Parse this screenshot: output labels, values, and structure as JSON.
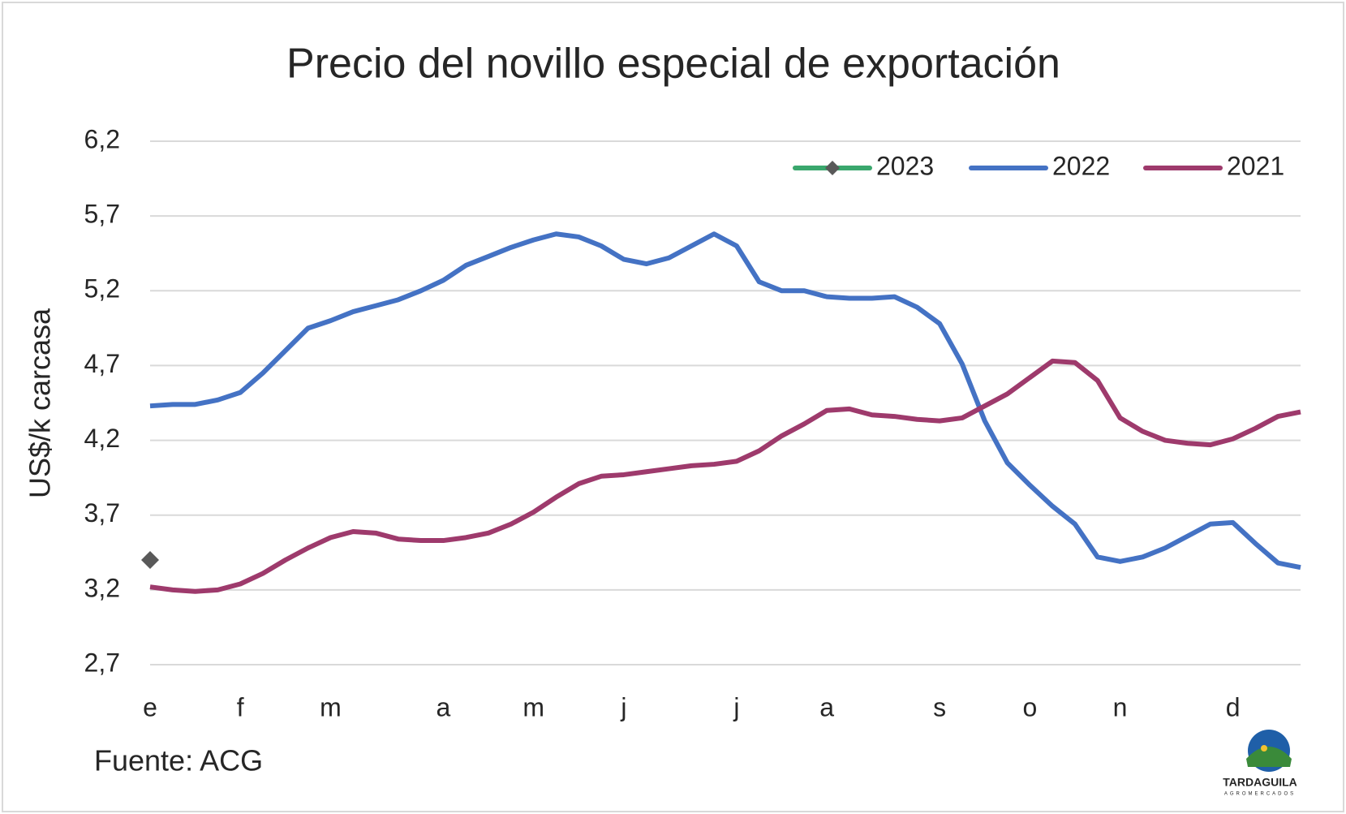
{
  "chart_data": {
    "type": "line",
    "title": "Precio del novillo especial de exportación",
    "y_label": "US$/k carcasa",
    "source": "Fuente: ACG",
    "logo": {
      "name": "TARDAGUILA",
      "tagline": "AGROMERCADOS"
    },
    "categories": [
      "e",
      null,
      null,
      null,
      "f",
      null,
      null,
      null,
      "m",
      null,
      null,
      null,
      null,
      "a",
      null,
      null,
      null,
      "m",
      null,
      null,
      null,
      "j",
      null,
      null,
      null,
      null,
      "j",
      null,
      null,
      null,
      "a",
      null,
      null,
      null,
      null,
      "s",
      null,
      null,
      null,
      "o",
      null,
      null,
      null,
      "n",
      null,
      null,
      null,
      null,
      "d",
      null,
      null,
      null
    ],
    "series": [
      {
        "name": "2023",
        "color": "#3aa76d",
        "marker": "diamond",
        "marker_color": "#595959",
        "values": [
          3.4,
          null,
          null,
          null,
          null,
          null,
          null,
          null,
          null,
          null,
          null,
          null,
          null,
          null,
          null,
          null,
          null,
          null,
          null,
          null,
          null,
          null,
          null,
          null,
          null,
          null,
          null,
          null,
          null,
          null,
          null,
          null,
          null,
          null,
          null,
          null,
          null,
          null,
          null,
          null,
          null,
          null,
          null,
          null,
          null,
          null,
          null,
          null,
          null,
          null,
          null,
          null
        ]
      },
      {
        "name": "2022",
        "color": "#4472c4",
        "values": [
          4.43,
          4.44,
          4.44,
          4.47,
          4.52,
          4.65,
          4.8,
          4.95,
          5.0,
          5.06,
          5.1,
          5.14,
          5.2,
          5.27,
          5.37,
          5.43,
          5.49,
          5.54,
          5.58,
          5.56,
          5.5,
          5.41,
          5.38,
          5.42,
          5.5,
          5.58,
          5.5,
          5.26,
          5.2,
          5.2,
          5.16,
          5.15,
          5.15,
          5.16,
          5.09,
          4.98,
          4.71,
          4.33,
          4.05,
          3.9,
          3.76,
          3.64,
          3.42,
          3.39,
          3.42,
          3.48,
          3.56,
          3.64,
          3.65,
          3.51,
          3.38,
          3.35
        ]
      },
      {
        "name": "2021",
        "color": "#9e3a6c",
        "values": [
          3.22,
          3.2,
          3.19,
          3.2,
          3.24,
          3.31,
          3.4,
          3.48,
          3.55,
          3.59,
          3.58,
          3.54,
          3.53,
          3.53,
          3.55,
          3.58,
          3.64,
          3.72,
          3.82,
          3.91,
          3.96,
          3.97,
          3.99,
          4.01,
          4.03,
          4.04,
          4.06,
          4.13,
          4.23,
          4.31,
          4.4,
          4.41,
          4.37,
          4.36,
          4.34,
          4.33,
          4.35,
          4.43,
          4.51,
          4.62,
          4.73,
          4.72,
          4.6,
          4.35,
          4.26,
          4.2,
          4.18,
          4.17,
          4.21,
          4.28,
          4.36,
          4.39
        ]
      }
    ],
    "ylim": [
      2.7,
      6.2
    ],
    "yticks": [
      {
        "value": 2.7,
        "label": "2,7"
      },
      {
        "value": 3.2,
        "label": "3,2"
      },
      {
        "value": 3.7,
        "label": "3,7"
      },
      {
        "value": 4.2,
        "label": "4,2"
      },
      {
        "value": 4.7,
        "label": "4,7"
      },
      {
        "value": 5.2,
        "label": "5,2"
      },
      {
        "value": 5.7,
        "label": "5,7"
      },
      {
        "value": 6.2,
        "label": "6,2"
      }
    ],
    "grid": true,
    "legend": "top-right"
  }
}
